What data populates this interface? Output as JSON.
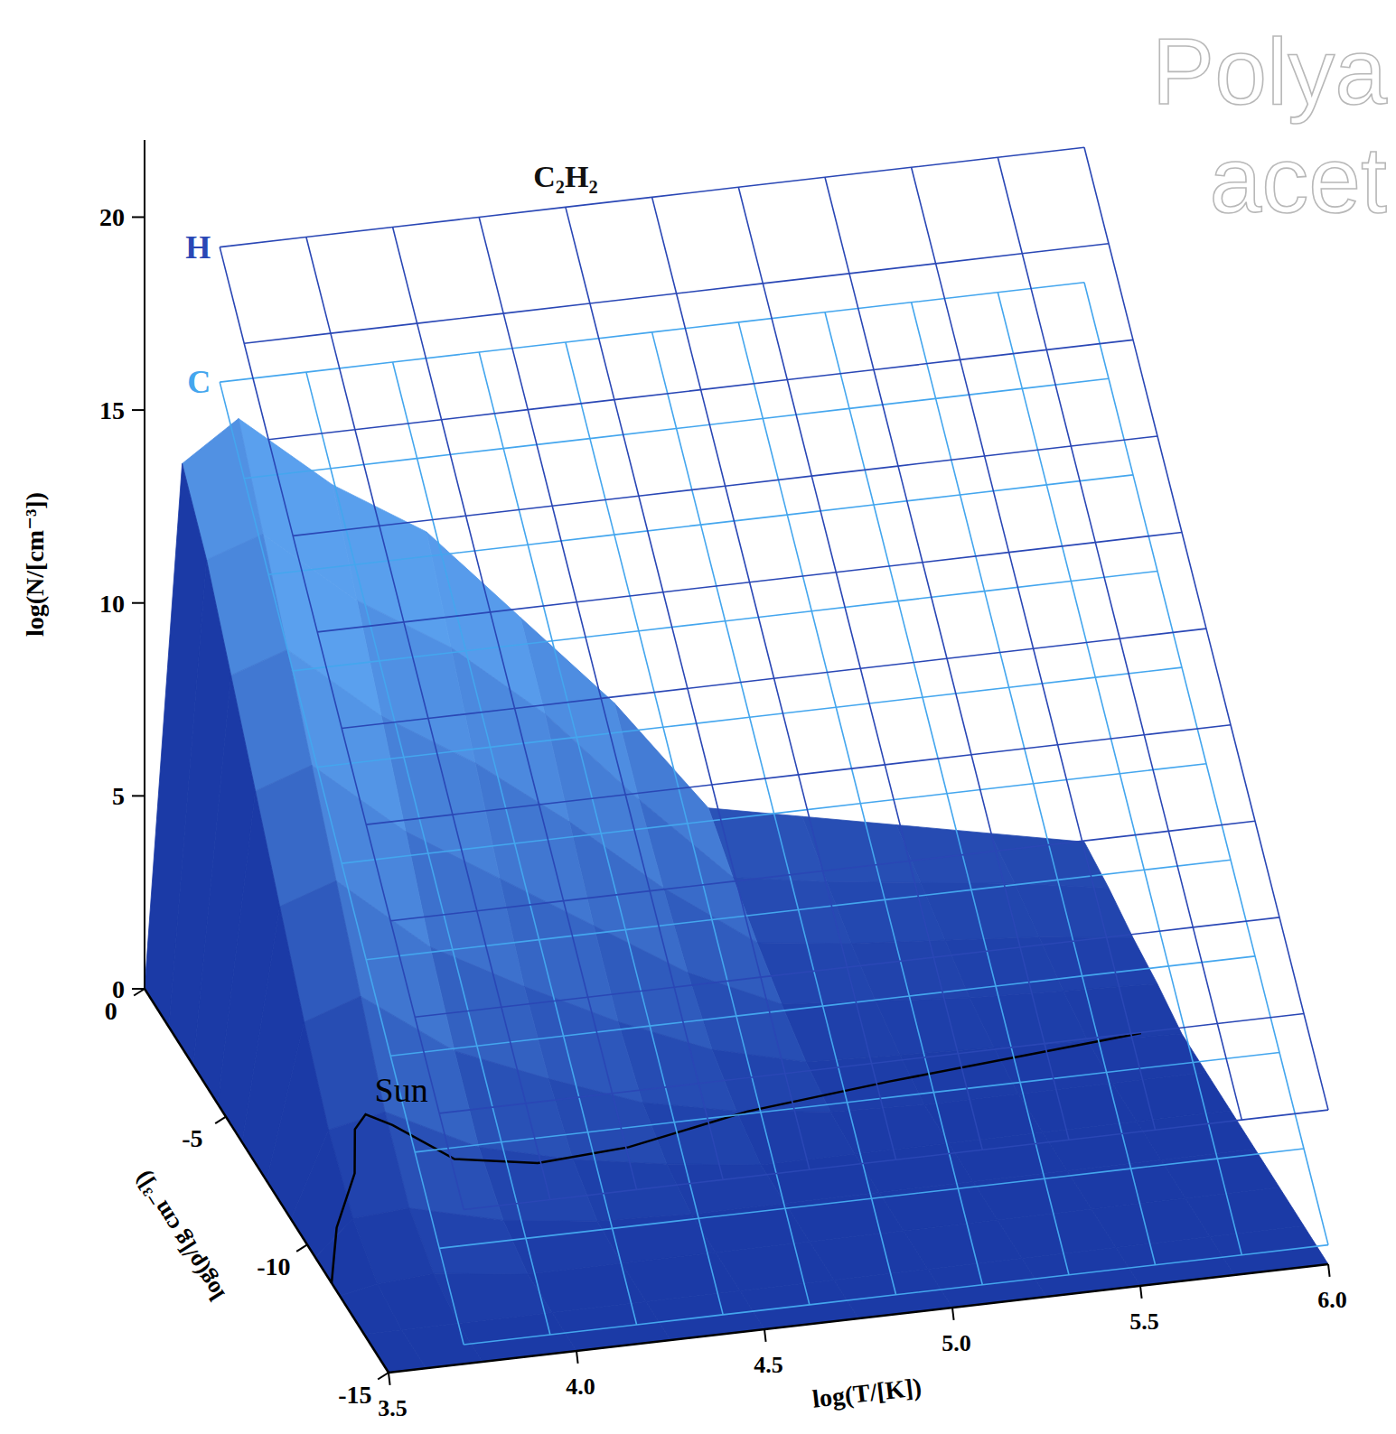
{
  "chart_data": {
    "type": "surface3d",
    "x_label": "log(T/[K])",
    "y_label": "log(ρ/[g cm⁻³])",
    "z_label": "log(N/[cm⁻³])",
    "xlim": [
      3.5,
      6.0
    ],
    "xticks": [
      3.5,
      {
        "value": 4,
        "label": "4.0"
      },
      4.5,
      {
        "value": 5,
        "label": "5.0"
      },
      5.5,
      {
        "value": 6,
        "label": "6.0"
      }
    ],
    "ylim": [
      -15,
      0
    ],
    "yticks": [
      -15,
      -10,
      -5,
      0
    ],
    "zlim": [
      0,
      22
    ],
    "zticks": [
      0,
      5,
      10,
      15,
      20
    ],
    "series": [
      {
        "name": "C₂H₂",
        "type": "surface",
        "color": "#1b3aa6",
        "x": [
          3.5,
          3.6,
          3.75,
          4.0,
          4.25,
          4.5,
          4.75,
          5.0,
          5.25,
          5.5,
          5.75,
          6.0
        ],
        "y": [
          0,
          -1.5,
          -3,
          -4.5,
          -6,
          -7.5,
          -9,
          -10.5,
          -12,
          -13.5,
          -15
        ],
        "values": [
          [
            0,
            13.5,
            14.5,
            12.5,
            11,
            8.5,
            6,
            3,
            2.5,
            2,
            1.5,
            1
          ],
          [
            0,
            12,
            12.5,
            10.5,
            9,
            7,
            4.5,
            2.2,
            1.8,
            1.5,
            1.2,
            0.8
          ],
          [
            0,
            10,
            10.5,
            8.5,
            7,
            5.2,
            3.2,
            1.5,
            1.2,
            1,
            0.8,
            0.5
          ],
          [
            0,
            8,
            8.5,
            6.5,
            5,
            3.5,
            2,
            0.9,
            0.7,
            0.5,
            0.4,
            0.3
          ],
          [
            0,
            6,
            6.5,
            4.5,
            3.2,
            2,
            1,
            0.4,
            0.3,
            0.2,
            0.1,
            0
          ],
          [
            0,
            4,
            4.5,
            2.8,
            1.8,
            0.9,
            0.4,
            0.1,
            0,
            0,
            0,
            0
          ],
          [
            0,
            2.2,
            2.5,
            1.3,
            0.7,
            0.3,
            0,
            0,
            0,
            0,
            0,
            0
          ],
          [
            0,
            0.9,
            1,
            0.4,
            0.1,
            0,
            0,
            0,
            0,
            0,
            0,
            0
          ],
          [
            0,
            0.2,
            0.3,
            0,
            0,
            0,
            0,
            0,
            0,
            0,
            0,
            0
          ],
          [
            0,
            0,
            0,
            0,
            0,
            0,
            0,
            0,
            0,
            0,
            0,
            0
          ],
          [
            0,
            0,
            0,
            0,
            0,
            0,
            0,
            0,
            0,
            0,
            0,
            0
          ]
        ]
      },
      {
        "name": "C",
        "type": "wireframe",
        "color": "#44a6ee",
        "x": [
          3.7,
          3.93,
          4.16,
          4.39,
          4.62,
          4.85,
          5.08,
          5.31,
          5.54,
          5.77,
          6.0
        ],
        "y": [
          0,
          -1.5,
          -3,
          -4.5,
          -6,
          -7.5,
          -9,
          -10.5,
          -12,
          -13.5,
          -15
        ],
        "values": [
          [
            15.5,
            15.5,
            15.5,
            15.5,
            15.5,
            15.5,
            15.5,
            15.5,
            15.5,
            15.5,
            15.5
          ],
          [
            14,
            14,
            14,
            14,
            14,
            14,
            14,
            14,
            14,
            14,
            14
          ],
          [
            12.5,
            12.5,
            12.5,
            12.5,
            12.5,
            12.5,
            12.5,
            12.5,
            12.5,
            12.5,
            12.5
          ],
          [
            11,
            11,
            11,
            11,
            11,
            11,
            11,
            11,
            11,
            11,
            11
          ],
          [
            9.5,
            9.5,
            9.5,
            9.5,
            9.5,
            9.5,
            9.5,
            9.5,
            9.5,
            9.5,
            9.5
          ],
          [
            8,
            8,
            8,
            8,
            8,
            8,
            8,
            8,
            8,
            8,
            8
          ],
          [
            6.5,
            6.5,
            6.5,
            6.5,
            6.5,
            6.5,
            6.5,
            6.5,
            6.5,
            6.5,
            6.5
          ],
          [
            5,
            5,
            5,
            5,
            5,
            5,
            5,
            5,
            5,
            5,
            5
          ],
          [
            3.5,
            3.5,
            3.5,
            3.5,
            3.5,
            3.5,
            3.5,
            3.5,
            3.5,
            3.5,
            3.5
          ],
          [
            2,
            2,
            2,
            2,
            2,
            2,
            2,
            2,
            2,
            2,
            2
          ],
          [
            0.5,
            0.5,
            0.5,
            0.5,
            0.5,
            0.5,
            0.5,
            0.5,
            0.5,
            0.5,
            0.5
          ]
        ]
      },
      {
        "name": "H",
        "type": "wireframe",
        "color": "#2a47b5",
        "x": [
          3.7,
          3.93,
          4.16,
          4.39,
          4.62,
          4.85,
          5.08,
          5.31,
          5.54,
          5.77,
          6.0
        ],
        "y": [
          0,
          -1.5,
          -3,
          -4.5,
          -6,
          -7.5,
          -9,
          -10.5,
          -12,
          -13.5,
          -15
        ],
        "values": [
          [
            19,
            19,
            19,
            19,
            19,
            19,
            19,
            19,
            19,
            19,
            19
          ],
          [
            17.5,
            17.5,
            17.5,
            17.5,
            17.5,
            17.5,
            17.5,
            17.5,
            17.5,
            17.5,
            17.5
          ],
          [
            16,
            16,
            16,
            16,
            16,
            16,
            16,
            16,
            16,
            16,
            16
          ],
          [
            14.5,
            14.5,
            14.5,
            14.5,
            14.5,
            14.5,
            14.5,
            14.5,
            14.5,
            14.5,
            14.5
          ],
          [
            13,
            13,
            13,
            13,
            13,
            13,
            13,
            13,
            13,
            13,
            13
          ],
          [
            11.5,
            11.5,
            11.5,
            11.5,
            11.5,
            11.5,
            11.5,
            11.5,
            11.5,
            11.5,
            11.5
          ],
          [
            10,
            10,
            10,
            10,
            10,
            10,
            10,
            10,
            10,
            10,
            10
          ],
          [
            8.5,
            8.5,
            8.5,
            8.5,
            8.5,
            8.5,
            8.5,
            8.5,
            8.5,
            8.5,
            8.5
          ],
          [
            7,
            7,
            7,
            7,
            7,
            7,
            7,
            7,
            7,
            7,
            7
          ],
          [
            5.5,
            5.5,
            5.5,
            5.5,
            5.5,
            5.5,
            5.5,
            5.5,
            5.5,
            5.5,
            5.5
          ],
          [
            4,
            4,
            4,
            4,
            4,
            4,
            4,
            4,
            4,
            4,
            4
          ]
        ]
      }
    ],
    "curve": {
      "name": "Sun",
      "color": "#000000",
      "x": [
        3.5,
        3.6,
        3.73,
        3.8,
        3.85,
        3.9,
        4.0,
        4.2,
        4.45,
        4.8,
        5.2,
        5.9
      ],
      "y": [
        -11.5,
        -9.5,
        -7.6,
        -6.0,
        -5.5,
        -6.0,
        -7.5,
        -8.0,
        -7.8,
        -7.0,
        -6.5,
        -5.8
      ]
    },
    "annotations": [
      "Polya",
      "acet"
    ]
  }
}
